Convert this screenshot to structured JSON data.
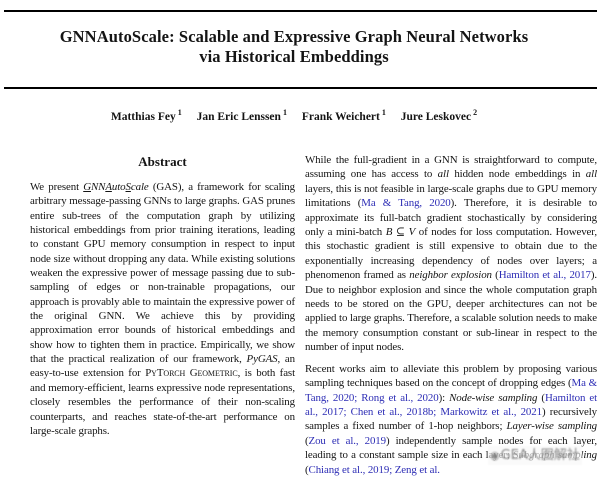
{
  "header": {
    "title_line1": "GNNAutoScale: Scalable and Expressive Graph Neural Networks",
    "title_line2": "via Historical Embeddings",
    "authors": [
      {
        "name": "Matthias Fey",
        "affiliation_mark": "1"
      },
      {
        "name": "Jan Eric Lenssen",
        "affiliation_mark": "1"
      },
      {
        "name": "Frank Weichert",
        "affiliation_mark": "1"
      },
      {
        "name": "Jure Leskovec",
        "affiliation_mark": "2"
      }
    ]
  },
  "abstract": {
    "heading": "Abstract",
    "segments": [
      {
        "t": "We present ",
        "s": ""
      },
      {
        "t": "G",
        "s": "iu"
      },
      {
        "t": "NN",
        "s": "i"
      },
      {
        "t": "A",
        "s": "iu"
      },
      {
        "t": "uto",
        "s": "i"
      },
      {
        "t": "S",
        "s": "iu"
      },
      {
        "t": "cale",
        "s": "i"
      },
      {
        "t": " (GAS), a framework for scaling arbitrary message-passing GNNs to large graphs. GAS prunes entire sub-trees of the computation graph by utilizing historical embeddings from prior training iterations, leading to constant GPU memory consumption in respect to input node size without dropping any data. While existing solutions weaken the expressive power of message passing due to sub-sampling of edges or non-trainable propagations, our approach is provably able to maintain the expressive power of the original GNN. We achieve this by providing approximation error bounds of historical embeddings and show how to tighten them in practice. Empirically, we show that the practical realization of our framework, ",
        "s": ""
      },
      {
        "t": "PyGAS",
        "s": "i"
      },
      {
        "t": ", an easy-to-use extension for ",
        "s": ""
      },
      {
        "t": "PyTorch Geometric",
        "s": "s"
      },
      {
        "t": ", is both fast and memory-efficient, learns expressive node representations, closely resembles the performance of their non-scaling counterparts, and reaches state-of-the-art performance on large-scale graphs.",
        "s": ""
      }
    ]
  },
  "introduction": {
    "paragraphs": [
      {
        "segments": [
          {
            "t": "While the full-gradient in a GNN is straightforward to compute, assuming one has access to ",
            "s": ""
          },
          {
            "t": "all",
            "s": "i"
          },
          {
            "t": " hidden node embeddings in ",
            "s": ""
          },
          {
            "t": "all",
            "s": "i"
          },
          {
            "t": " layers, this is not feasible in large-scale graphs due to GPU memory limitations (",
            "s": ""
          },
          {
            "t": "Ma & Tang, 2020",
            "s": "c"
          },
          {
            "t": "). Therefore, it is desirable to approximate its full-batch gradient stochastically by considering only a mini-batch ",
            "s": ""
          },
          {
            "t": "B",
            "s": "m"
          },
          {
            "t": " ⊆ ",
            "s": ""
          },
          {
            "t": "V",
            "s": "m"
          },
          {
            "t": " of nodes for loss computation. However, this stochastic gradient is still expensive to obtain due to the exponentially increasing dependency of nodes over layers; a phenomenon framed as ",
            "s": ""
          },
          {
            "t": "neighbor explosion",
            "s": "i"
          },
          {
            "t": " (",
            "s": ""
          },
          {
            "t": "Hamilton et al., 2017",
            "s": "c"
          },
          {
            "t": "). Due to neighbor explosion and since the whole computation graph needs to be stored on the GPU, deeper architectures can not be applied to large graphs. Therefore, a scalable solution needs to make the memory consumption constant or sub-linear in respect to the number of input nodes.",
            "s": ""
          }
        ]
      },
      {
        "segments": [
          {
            "t": "Recent works aim to alleviate this problem by proposing various sampling techniques based on the concept of dropping edges (",
            "s": ""
          },
          {
            "t": "Ma & Tang, 2020; Rong et al., 2020",
            "s": "c"
          },
          {
            "t": "): ",
            "s": ""
          },
          {
            "t": "Node-wise sampling",
            "s": "i"
          },
          {
            "t": " (",
            "s": ""
          },
          {
            "t": "Hamilton et al., 2017; Chen et al., 2018b; Markowitz et al., 2021",
            "s": "c"
          },
          {
            "t": ") recursively samples a fixed number of 1-hop neighbors; ",
            "s": ""
          },
          {
            "t": "Layer-wise sampling",
            "s": "i"
          },
          {
            "t": " (",
            "s": ""
          },
          {
            "t": "Zou et al., 2019",
            "s": "c"
          },
          {
            "t": ") independently sample nodes for each layer, leading to a constant sample size in each layer; ",
            "s": ""
          },
          {
            "t": "Subgraph sampling",
            "s": "i"
          },
          {
            "t": " (",
            "s": ""
          },
          {
            "t": "Chiang et al., 2019; Zeng et al.",
            "s": "c"
          }
        ]
      }
    ]
  },
  "watermark": {
    "icon": "circle-logo",
    "text": "GEA人图解社"
  },
  "colors": {
    "citation_blue": "#2d2db5",
    "text": "#141414",
    "watermark_gray": "#7d7d7d"
  }
}
